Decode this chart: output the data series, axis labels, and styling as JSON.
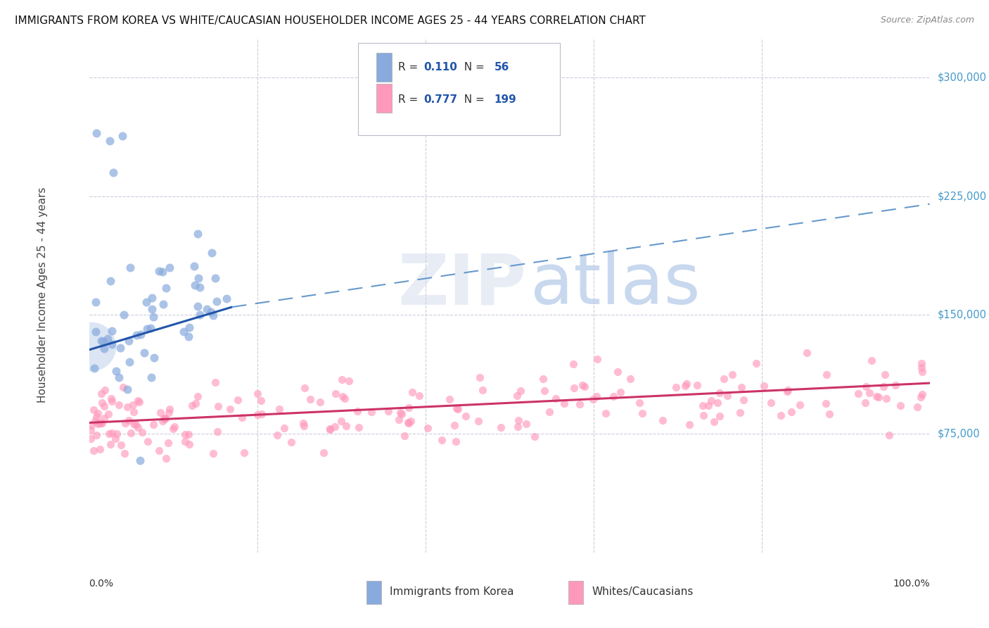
{
  "title": "IMMIGRANTS FROM KOREA VS WHITE/CAUCASIAN HOUSEHOLDER INCOME AGES 25 - 44 YEARS CORRELATION CHART",
  "source": "Source: ZipAtlas.com",
  "ylabel": "Householder Income Ages 25 - 44 years",
  "ylim": [
    0,
    325000
  ],
  "xlim": [
    0.0,
    1.0
  ],
  "legend_korea_R": "0.110",
  "legend_korea_N": "56",
  "legend_white_R": "0.777",
  "legend_white_N": "199",
  "legend_label_korea": "Immigrants from Korea",
  "legend_label_white": "Whites/Caucasians",
  "korea_color": "#88AADD",
  "white_color": "#FF99BB",
  "korea_line_color": "#2255AA",
  "white_line_color": "#CC3366",
  "korea_dash_color": "#6699CC",
  "background_color": "#FFFFFF",
  "grid_color": "#CCCCDD",
  "title_fontsize": 11,
  "source_fontsize": 9
}
